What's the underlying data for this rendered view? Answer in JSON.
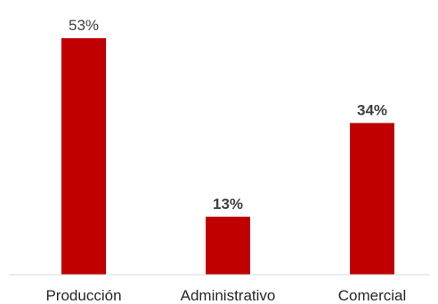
{
  "chart_data": {
    "type": "bar",
    "categories": [
      "Producción",
      "Administrativo",
      "Comercial"
    ],
    "values": [
      53,
      13,
      34
    ],
    "value_labels": [
      "53%",
      "13%",
      "34%"
    ],
    "label_bold": [
      false,
      true,
      true
    ],
    "ylim": [
      0,
      53
    ],
    "bar_color": "#c00000",
    "grid": false,
    "legend": "none",
    "title": "",
    "xlabel": "",
    "ylabel": ""
  }
}
